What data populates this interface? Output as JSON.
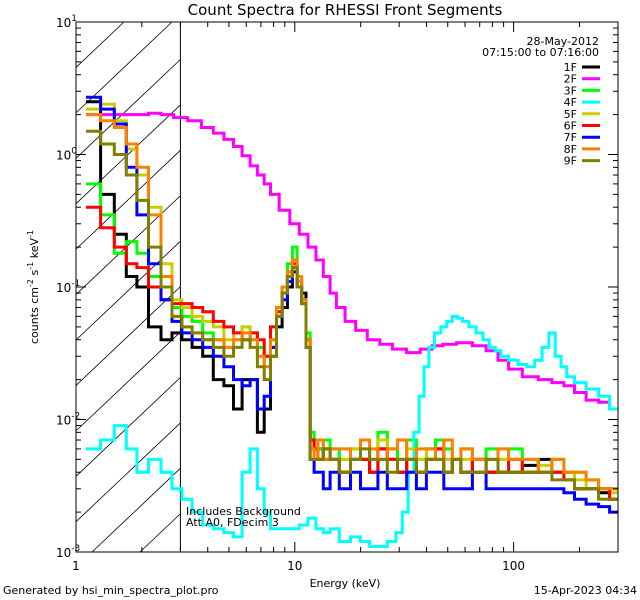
{
  "chart_data": {
    "type": "line",
    "title": "Count Spectra for RHESSI Front Segments",
    "xlabel": "Energy (keV)",
    "ylabel": "counts cm-2 s-1 keV-1",
    "x_scale": "log",
    "y_scale": "log",
    "xlim": [
      1,
      300
    ],
    "ylim": [
      0.001,
      10
    ],
    "x_ticks": [
      {
        "value": 1,
        "label": "1"
      },
      {
        "value": 10,
        "label": "10"
      },
      {
        "value": 100,
        "label": "100"
      }
    ],
    "y_ticks": [
      {
        "value": 0.001,
        "base": "10",
        "exp": "-3"
      },
      {
        "value": 0.01,
        "base": "10",
        "exp": "-2"
      },
      {
        "value": 0.1,
        "base": "10",
        "exp": "-1"
      },
      {
        "value": 1,
        "base": "10",
        "exp": "0"
      },
      {
        "value": 10,
        "base": "10",
        "exp": "1"
      }
    ],
    "date": "28-May-2012",
    "time_range": "07:15:00 to 07:16:00",
    "annotation_lines": [
      "Includes Background",
      "Att A0, FDecim 3"
    ],
    "hatched_region_xmax": 3,
    "legend_position": "top-right",
    "series": [
      {
        "name": "1F",
        "color": "#000000",
        "x": [
          1.2,
          1.4,
          1.6,
          1.8,
          2.0,
          2.3,
          2.6,
          2.9,
          3.2,
          3.6,
          4.0,
          4.5,
          5.0,
          5.5,
          6.0,
          6.5,
          7.0,
          7.5,
          8.0,
          8.5,
          9.0,
          9.5,
          10.0,
          10.5,
          11.0,
          11.5,
          12.0,
          12.5,
          13,
          14,
          15,
          17,
          19,
          21,
          23,
          25,
          28,
          31,
          34,
          38,
          42,
          46,
          50,
          55,
          60,
          70,
          80,
          90,
          100,
          120,
          140,
          160,
          180,
          200,
          230,
          260,
          290
        ],
        "y": [
          2.5,
          0.5,
          0.25,
          0.12,
          0.1,
          0.05,
          0.04,
          0.045,
          0.04,
          0.035,
          0.03,
          0.02,
          0.018,
          0.012,
          0.02,
          0.02,
          0.008,
          0.012,
          0.03,
          0.05,
          0.07,
          0.1,
          0.13,
          0.11,
          0.09,
          0.04,
          0.007,
          0.006,
          0.006,
          0.005,
          0.005,
          0.004,
          0.005,
          0.005,
          0.004,
          0.006,
          0.005,
          0.004,
          0.005,
          0.004,
          0.005,
          0.006,
          0.004,
          0.005,
          0.004,
          0.005,
          0.004,
          0.004,
          0.004,
          0.0045,
          0.005,
          0.004,
          0.004,
          0.003,
          0.003,
          0.0028,
          0.0025
        ]
      },
      {
        "name": "2F",
        "color": "#ff00ff",
        "x": [
          1.2,
          1.5,
          1.8,
          2.0,
          2.3,
          2.6,
          3.0,
          3.5,
          4.0,
          4.5,
          5.0,
          5.5,
          6.0,
          6.5,
          7.0,
          7.5,
          8.0,
          9.0,
          10.0,
          11.0,
          12.0,
          13.0,
          14.0,
          15.0,
          16.0,
          18.0,
          20.0,
          23.0,
          26.0,
          30.0,
          35.0,
          40.0,
          45.0,
          50.0,
          60.0,
          70.0,
          80.0,
          90.0,
          100.0,
          120.0,
          140.0,
          160.0,
          180.0,
          200.0,
          230.0,
          260.0,
          290.0
        ],
        "y": [
          2.0,
          2.0,
          2.0,
          2.0,
          2.05,
          2.0,
          1.9,
          1.8,
          1.6,
          1.45,
          1.3,
          1.15,
          0.98,
          0.82,
          0.7,
          0.6,
          0.5,
          0.38,
          0.3,
          0.25,
          0.2,
          0.16,
          0.12,
          0.09,
          0.07,
          0.055,
          0.047,
          0.04,
          0.037,
          0.034,
          0.032,
          0.034,
          0.036,
          0.037,
          0.038,
          0.036,
          0.033,
          0.028,
          0.024,
          0.021,
          0.02,
          0.019,
          0.018,
          0.016,
          0.014,
          0.0135,
          0.012
        ]
      },
      {
        "name": "3F",
        "color": "#00ff00",
        "x": [
          1.2,
          1.4,
          1.6,
          1.8,
          2.0,
          2.3,
          2.6,
          2.9,
          3.2,
          3.6,
          4.0,
          4.5,
          5.0,
          5.5,
          6.0,
          6.5,
          7.0,
          7.5,
          8.0,
          8.5,
          9.0,
          9.5,
          10.0,
          10.5,
          11.0,
          11.5,
          12.0,
          12.5,
          13,
          14,
          15,
          17,
          19,
          21,
          23,
          25,
          28,
          31,
          34,
          38,
          42,
          46,
          50,
          55,
          60,
          70,
          80,
          90,
          100,
          120,
          140,
          160,
          180,
          200,
          230,
          260,
          290
        ],
        "y": [
          0.6,
          0.35,
          0.18,
          0.22,
          0.18,
          0.12,
          0.08,
          0.07,
          0.06,
          0.055,
          0.045,
          0.04,
          0.035,
          0.04,
          0.05,
          0.045,
          0.035,
          0.03,
          0.04,
          0.07,
          0.1,
          0.15,
          0.2,
          0.12,
          0.08,
          0.045,
          0.008,
          0.007,
          0.006,
          0.007,
          0.006,
          0.005,
          0.006,
          0.005,
          0.006,
          0.008,
          0.006,
          0.005,
          0.007,
          0.005,
          0.006,
          0.007,
          0.006,
          0.005,
          0.006,
          0.005,
          0.006,
          0.005,
          0.006,
          0.005,
          0.004,
          0.005,
          0.004,
          0.004,
          0.0035,
          0.003,
          0.003
        ]
      },
      {
        "name": "4F",
        "color": "#00ffff",
        "x": [
          1.2,
          1.4,
          1.6,
          1.8,
          2.0,
          2.3,
          2.6,
          2.9,
          3.2,
          3.6,
          4.0,
          4.5,
          5.0,
          5.5,
          6.0,
          6.5,
          7.0,
          7.5,
          8.0,
          9,
          10,
          11,
          12,
          13,
          14,
          15,
          17,
          19,
          21,
          23,
          25,
          28,
          30,
          32,
          34,
          36,
          38,
          40,
          42,
          45,
          48,
          51,
          54,
          57,
          60,
          65,
          70,
          75,
          80,
          85,
          90,
          100,
          110,
          120,
          130,
          140,
          150,
          160,
          170,
          180,
          200,
          230,
          260,
          290
        ],
        "y": [
          0.006,
          0.007,
          0.009,
          0.006,
          0.004,
          0.005,
          0.004,
          0.003,
          0.0025,
          0.002,
          0.0016,
          0.0015,
          0.0014,
          0.0013,
          0.004,
          0.006,
          0.003,
          0.002,
          0.0015,
          0.0015,
          0.0015,
          0.0016,
          0.0018,
          0.0015,
          0.0014,
          0.0015,
          0.0012,
          0.0013,
          0.0012,
          0.0011,
          0.0011,
          0.0012,
          0.0014,
          0.002,
          0.004,
          0.008,
          0.015,
          0.025,
          0.035,
          0.045,
          0.05,
          0.055,
          0.06,
          0.058,
          0.055,
          0.05,
          0.045,
          0.04,
          0.035,
          0.033,
          0.03,
          0.028,
          0.026,
          0.025,
          0.028,
          0.035,
          0.045,
          0.03,
          0.025,
          0.021,
          0.019,
          0.017,
          0.015,
          0.012
        ]
      },
      {
        "name": "5F",
        "color": "#cccc00",
        "x": [
          1.2,
          1.4,
          1.6,
          1.8,
          2.0,
          2.3,
          2.6,
          2.9,
          3.2,
          3.6,
          4.0,
          4.5,
          5.0,
          5.5,
          6.0,
          6.5,
          7.0,
          7.5,
          8.0,
          8.5,
          9.0,
          9.5,
          10.0,
          10.5,
          11.0,
          11.5,
          12.0,
          12.5,
          13,
          14,
          15,
          17,
          19,
          21,
          23,
          25,
          28,
          31,
          34,
          38,
          42,
          46,
          50,
          55,
          60,
          70,
          80,
          90,
          100,
          120,
          140,
          160,
          180,
          200,
          230,
          260,
          290
        ],
        "y": [
          2.2,
          2.4,
          1.8,
          1.1,
          0.7,
          0.4,
          0.15,
          0.08,
          0.07,
          0.06,
          0.055,
          0.05,
          0.04,
          0.045,
          0.05,
          0.04,
          0.03,
          0.025,
          0.035,
          0.06,
          0.09,
          0.12,
          0.16,
          0.11,
          0.08,
          0.04,
          0.007,
          0.006,
          0.005,
          0.006,
          0.005,
          0.005,
          0.006,
          0.005,
          0.005,
          0.007,
          0.005,
          0.005,
          0.006,
          0.005,
          0.006,
          0.006,
          0.005,
          0.005,
          0.005,
          0.005,
          0.005,
          0.005,
          0.005,
          0.004,
          0.0045,
          0.004,
          0.004,
          0.0035,
          0.003,
          0.003,
          0.0028
        ]
      },
      {
        "name": "6F",
        "color": "#ff0000",
        "x": [
          1.2,
          1.4,
          1.6,
          1.8,
          2.0,
          2.3,
          2.6,
          2.9,
          3.2,
          3.6,
          4.0,
          4.5,
          5.0,
          5.5,
          6.0,
          6.5,
          7.0,
          7.5,
          8.0,
          8.5,
          9.0,
          9.5,
          10.0,
          10.5,
          11.0,
          11.5,
          12.0,
          12.5,
          13,
          14,
          15,
          17,
          19,
          21,
          23,
          25,
          28,
          31,
          34,
          38,
          42,
          46,
          50,
          55,
          60,
          70,
          80,
          90,
          100,
          120,
          140,
          160,
          180,
          200,
          230,
          260,
          290
        ],
        "y": [
          0.4,
          0.28,
          0.2,
          0.15,
          0.14,
          0.1,
          0.08,
          0.075,
          0.075,
          0.07,
          0.065,
          0.055,
          0.05,
          0.045,
          0.04,
          0.045,
          0.04,
          0.03,
          0.05,
          0.065,
          0.09,
          0.12,
          0.15,
          0.1,
          0.075,
          0.04,
          0.007,
          0.006,
          0.005,
          0.006,
          0.005,
          0.004,
          0.005,
          0.005,
          0.004,
          0.006,
          0.005,
          0.004,
          0.005,
          0.004,
          0.005,
          0.006,
          0.004,
          0.005,
          0.004,
          0.005,
          0.004,
          0.004,
          0.005,
          0.004,
          0.004,
          0.004,
          0.0035,
          0.003,
          0.003,
          0.003,
          0.0025
        ]
      },
      {
        "name": "7F",
        "color": "#0000ff",
        "x": [
          1.2,
          1.4,
          1.6,
          1.8,
          2.0,
          2.3,
          2.6,
          2.9,
          3.2,
          3.6,
          4.0,
          4.5,
          5.0,
          5.5,
          6.0,
          6.5,
          7.0,
          7.5,
          8.0,
          8.5,
          9.0,
          9.5,
          10.0,
          10.5,
          11.0,
          11.5,
          12.0,
          12.5,
          13,
          14,
          15,
          17,
          19,
          21,
          23,
          25,
          28,
          31,
          34,
          38,
          42,
          46,
          50,
          55,
          60,
          70,
          80,
          90,
          100,
          120,
          140,
          160,
          180,
          200,
          230,
          260,
          290
        ],
        "y": [
          2.7,
          2.2,
          1.7,
          0.8,
          0.35,
          0.15,
          0.08,
          0.055,
          0.045,
          0.04,
          0.035,
          0.03,
          0.025,
          0.02,
          0.018,
          0.02,
          0.012,
          0.015,
          0.035,
          0.06,
          0.08,
          0.11,
          0.14,
          0.1,
          0.08,
          0.035,
          0.005,
          0.004,
          0.004,
          0.003,
          0.004,
          0.003,
          0.004,
          0.003,
          0.003,
          0.004,
          0.003,
          0.003,
          0.004,
          0.003,
          0.004,
          0.004,
          0.003,
          0.003,
          0.003,
          0.004,
          0.003,
          0.003,
          0.003,
          0.003,
          0.003,
          0.003,
          0.0028,
          0.0025,
          0.0023,
          0.0022,
          0.002
        ]
      },
      {
        "name": "8F",
        "color": "#ff7f00",
        "x": [
          1.2,
          1.4,
          1.6,
          1.8,
          2.0,
          2.3,
          2.6,
          2.9,
          3.2,
          3.6,
          4.0,
          4.5,
          5.0,
          5.5,
          6.0,
          6.5,
          7.0,
          7.5,
          8.0,
          8.5,
          9.0,
          9.5,
          10.0,
          10.5,
          11.0,
          11.5,
          12.0,
          12.5,
          13,
          14,
          15,
          17,
          19,
          21,
          23,
          25,
          28,
          31,
          34,
          38,
          42,
          46,
          50,
          55,
          60,
          70,
          80,
          90,
          100,
          120,
          140,
          160,
          180,
          200,
          230,
          260,
          290
        ],
        "y": [
          2.0,
          1.8,
          1.6,
          1.2,
          0.8,
          0.35,
          0.12,
          0.06,
          0.05,
          0.045,
          0.04,
          0.04,
          0.035,
          0.04,
          0.045,
          0.04,
          0.03,
          0.025,
          0.04,
          0.07,
          0.1,
          0.13,
          0.16,
          0.12,
          0.08,
          0.04,
          0.006,
          0.005,
          0.007,
          0.005,
          0.006,
          0.006,
          0.005,
          0.007,
          0.006,
          0.005,
          0.006,
          0.007,
          0.005,
          0.006,
          0.006,
          0.005,
          0.007,
          0.005,
          0.006,
          0.005,
          0.005,
          0.006,
          0.005,
          0.005,
          0.004,
          0.005,
          0.004,
          0.004,
          0.0035,
          0.003,
          0.003
        ]
      },
      {
        "name": "9F",
        "color": "#808000",
        "x": [
          1.2,
          1.4,
          1.6,
          1.8,
          2.0,
          2.3,
          2.6,
          2.9,
          3.2,
          3.6,
          4.0,
          4.5,
          5.0,
          5.5,
          6.0,
          6.5,
          7.0,
          7.5,
          8.0,
          8.5,
          9.0,
          9.5,
          10.0,
          10.5,
          11.0,
          11.5,
          12.0,
          12.5,
          13,
          14,
          15,
          17,
          19,
          21,
          23,
          25,
          28,
          31,
          34,
          38,
          42,
          46,
          50,
          55,
          60,
          70,
          80,
          90,
          100,
          120,
          140,
          160,
          180,
          200,
          230,
          260,
          290
        ],
        "y": [
          1.5,
          1.2,
          1.0,
          0.7,
          0.45,
          0.2,
          0.1,
          0.06,
          0.05,
          0.045,
          0.04,
          0.035,
          0.03,
          0.035,
          0.04,
          0.035,
          0.025,
          0.02,
          0.03,
          0.06,
          0.09,
          0.12,
          0.14,
          0.1,
          0.075,
          0.035,
          0.005,
          0.005,
          0.005,
          0.006,
          0.005,
          0.004,
          0.005,
          0.006,
          0.005,
          0.005,
          0.004,
          0.005,
          0.005,
          0.004,
          0.005,
          0.005,
          0.004,
          0.005,
          0.004,
          0.004,
          0.005,
          0.004,
          0.004,
          0.004,
          0.004,
          0.0035,
          0.0035,
          0.003,
          0.003,
          0.0025,
          0.0025
        ]
      }
    ]
  },
  "footer": {
    "left": "Generated by hsi_min_spectra_plot.pro",
    "right": "15-Apr-2023 04:34"
  }
}
